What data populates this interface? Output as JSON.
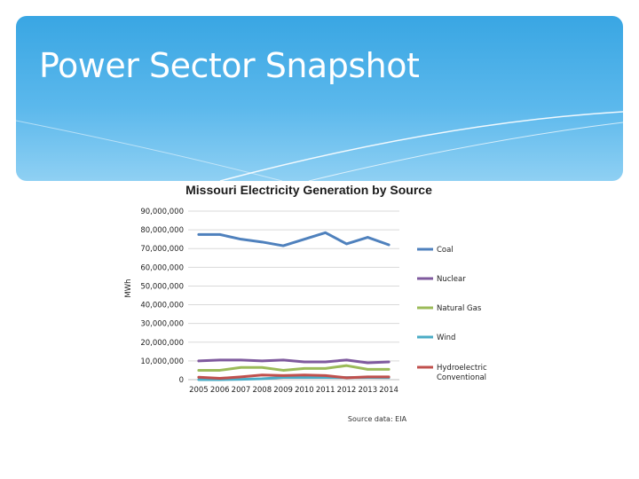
{
  "slide": {
    "title": "Power Sector Snapshot"
  },
  "chart_data": {
    "type": "line",
    "title": "Missouri Electricity Generation by Source",
    "xlabel": "",
    "ylabel": "MWh",
    "ylim": [
      0,
      90000000
    ],
    "yticks": [
      "0",
      "10,000,000",
      "20,000,000",
      "30,000,000",
      "40,000,000",
      "50,000,000",
      "60,000,000",
      "70,000,000",
      "80,000,000",
      "90,000,000"
    ],
    "ytick_values": [
      0,
      10000000,
      20000000,
      30000000,
      40000000,
      50000000,
      60000000,
      70000000,
      80000000,
      90000000
    ],
    "x": [
      "2005",
      "2006",
      "2007",
      "2008",
      "2009",
      "2010",
      "2011",
      "2012",
      "2013",
      "2014"
    ],
    "grid": true,
    "legend_position": "right",
    "source_note": "Source data: EIA",
    "series": [
      {
        "name": "Coal",
        "color": "#4f81bd",
        "values": [
          77500000,
          77500000,
          75000000,
          73500000,
          71500000,
          75000000,
          78500000,
          72500000,
          76000000,
          72000000
        ]
      },
      {
        "name": "Nuclear",
        "color": "#7f5a9e",
        "values": [
          10000000,
          10500000,
          10500000,
          10000000,
          10500000,
          9500000,
          9500000,
          10500000,
          9000000,
          9500000
        ]
      },
      {
        "name": "Natural Gas",
        "color": "#9bbb59",
        "values": [
          5000000,
          5000000,
          6500000,
          6500000,
          5000000,
          6000000,
          6000000,
          7500000,
          5500000,
          5500000
        ]
      },
      {
        "name": "Wind",
        "color": "#4bacc6",
        "values": [
          0,
          0,
          200000,
          500000,
          1200000,
          1200000,
          1200000,
          1100000,
          1200000,
          1100000
        ]
      },
      {
        "name": "Hydroelectric Conventional",
        "color": "#c0504d",
        "values": [
          1300000,
          700000,
          1500000,
          2500000,
          2200000,
          2500000,
          2200000,
          1000000,
          1500000,
          1500000
        ]
      }
    ]
  }
}
